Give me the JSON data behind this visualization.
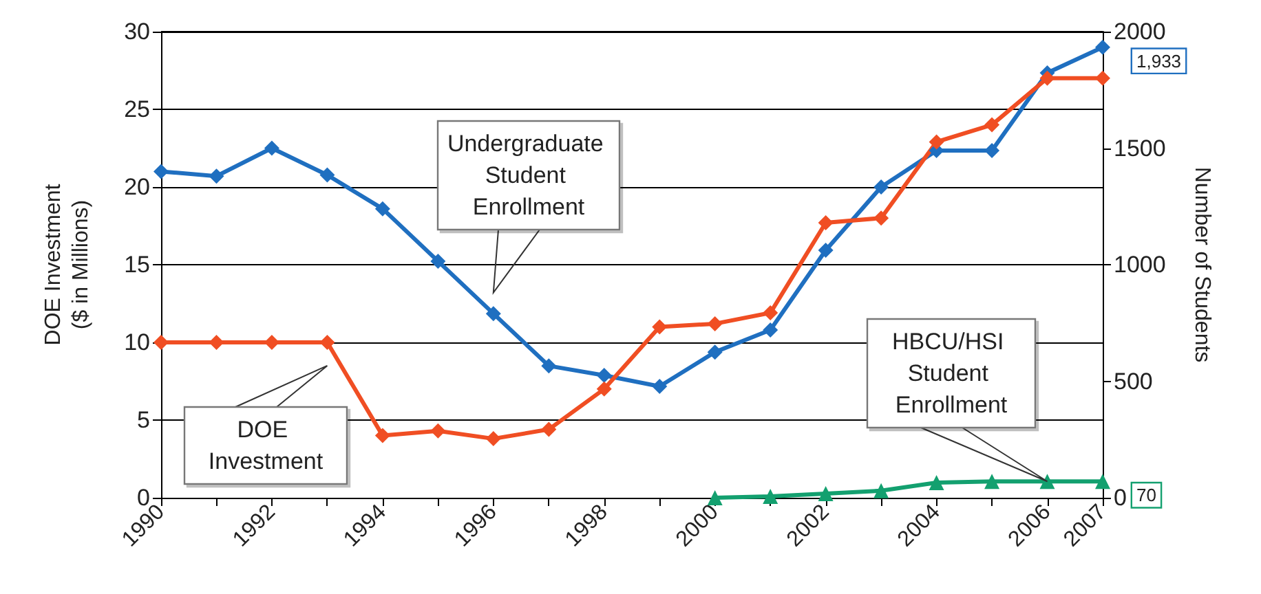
{
  "chart_data": {
    "type": "line",
    "ylabel": "DOE Investment\n($ in Millions)",
    "y2label": "Number of Students",
    "categories": [
      "1990",
      null,
      "1992",
      null,
      "1994",
      null,
      "1996",
      null,
      "1998",
      null,
      "2000",
      null,
      "2002",
      null,
      "2004",
      null,
      "2006",
      "2007"
    ],
    "ylim": [
      0,
      30
    ],
    "yticks": [
      0,
      5,
      10,
      15,
      20,
      25,
      30
    ],
    "y2lim": [
      0,
      2000
    ],
    "y2ticks": [
      0,
      500,
      1000,
      1500,
      2000
    ],
    "grid": "y",
    "legend": false,
    "series": [
      {
        "name": "Undergraduate Student Enrollment",
        "color": "#1f6fc0",
        "axis": "y2",
        "marker": "diamond",
        "values": [
          1400,
          1380,
          1500,
          1385,
          1240,
          1015,
          790,
          566,
          525,
          478,
          625,
          720,
          1062,
          1333,
          1490,
          1490,
          1823,
          1933
        ],
        "value_labels": [
          null,
          null,
          null,
          null,
          null,
          null,
          null,
          null,
          null,
          null,
          null,
          null,
          null,
          null,
          null,
          null,
          null,
          "1,933"
        ]
      },
      {
        "name": "DOE Investment",
        "color": "#f04e23",
        "marker": "diamond",
        "values": [
          10,
          10,
          10,
          10,
          4.0,
          4.3,
          3.8,
          4.4,
          7.0,
          11.0,
          11.2,
          11.9,
          17.7,
          18.0,
          22.9,
          24.0,
          27,
          27
        ]
      },
      {
        "name": "HBCU/HSI Student Enrollment",
        "color": "#13a06f",
        "axis": "y2",
        "marker": "triangle",
        "values": [
          null,
          null,
          null,
          null,
          null,
          null,
          null,
          null,
          null,
          null,
          0,
          6,
          18,
          30,
          65,
          70,
          70,
          70
        ],
        "value_labels": [
          null,
          null,
          null,
          null,
          null,
          null,
          null,
          null,
          null,
          null,
          null,
          null,
          null,
          null,
          null,
          null,
          null,
          "70"
        ]
      }
    ]
  }
}
